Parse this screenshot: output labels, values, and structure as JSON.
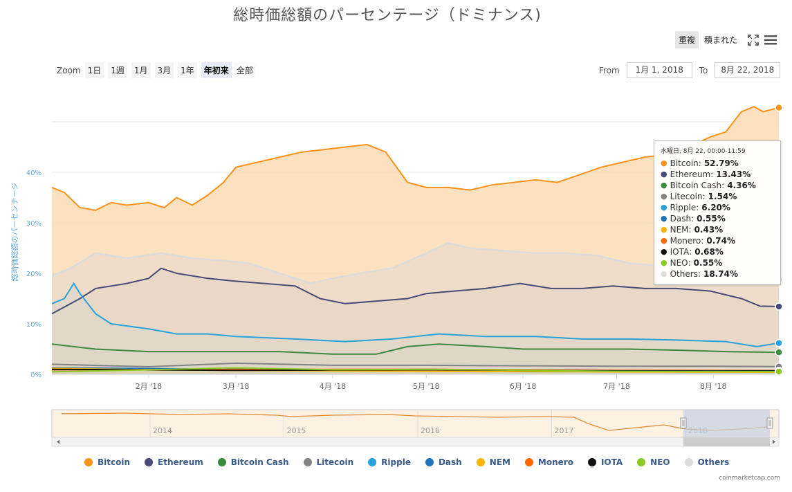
{
  "title": "総時価総額のパーセンテージ（ドミナンス)",
  "view_buttons": {
    "overlay": "重複",
    "stacked": "積まれた"
  },
  "zoom": {
    "label": "Zoom",
    "buttons": [
      "1日",
      "1週",
      "1月",
      "3月",
      "1年",
      "年初来",
      "全部"
    ],
    "active": "年初来"
  },
  "range": {
    "from_label": "From",
    "from": "1月 1, 2018",
    "to_label": "To",
    "to": "8月 22, 2018"
  },
  "tooltip": {
    "date": "水曜日, 8月 22, 00:00-11:59",
    "rows": [
      {
        "name": "Bitcoin",
        "value": "52.79%"
      },
      {
        "name": "Ethereum",
        "value": "13.43%"
      },
      {
        "name": "Bitcoin Cash",
        "value": "4.36%"
      },
      {
        "name": "Litecoin",
        "value": "1.54%"
      },
      {
        "name": "Ripple",
        "value": "6.20%"
      },
      {
        "name": "Dash",
        "value": "0.55%"
      },
      {
        "name": "NEM",
        "value": "0.43%"
      },
      {
        "name": "Monero",
        "value": "0.74%"
      },
      {
        "name": "IOTA",
        "value": "0.68%"
      },
      {
        "name": "NEO",
        "value": "0.55%"
      },
      {
        "name": "Others",
        "value": "18.74%"
      }
    ]
  },
  "credit": "coinmarketcap.com",
  "navigator": {
    "year_labels": [
      "2014",
      "2015",
      "2016",
      "2017",
      "2018"
    ]
  },
  "chart_data": {
    "type": "area",
    "ylabel": "総時価総額のパーセンテージ",
    "ylim": [
      0,
      55
    ],
    "y_ticks": [
      0,
      10,
      20,
      30,
      40
    ],
    "y_tick_labels": [
      "0%",
      "10%",
      "20%",
      "30%",
      "40%"
    ],
    "x_tick_labels": [
      "2月 '18",
      "3月 '18",
      "4月 '18",
      "5月 '18",
      "6月 '18",
      "7月 '18",
      "8月 '18"
    ],
    "x_tick_dates": [
      "2018-02-01",
      "2018-03-01",
      "2018-04-01",
      "2018-05-01",
      "2018-06-01",
      "2018-07-01",
      "2018-08-01"
    ],
    "x_range": [
      "2018-01-01",
      "2018-08-22"
    ],
    "legend_position": "bottom",
    "series": [
      {
        "name": "Bitcoin",
        "color": "#f7931a",
        "fill": "#fbd9b0",
        "points": [
          [
            "2018-01-01",
            37
          ],
          [
            "2018-01-05",
            36
          ],
          [
            "2018-01-10",
            33
          ],
          [
            "2018-01-15",
            32.5
          ],
          [
            "2018-01-20",
            34
          ],
          [
            "2018-01-25",
            33.5
          ],
          [
            "2018-02-01",
            34
          ],
          [
            "2018-02-06",
            33
          ],
          [
            "2018-02-10",
            35
          ],
          [
            "2018-02-15",
            33.5
          ],
          [
            "2018-02-20",
            35.5
          ],
          [
            "2018-02-25",
            38
          ],
          [
            "2018-03-01",
            41
          ],
          [
            "2018-03-08",
            42
          ],
          [
            "2018-03-15",
            43
          ],
          [
            "2018-03-22",
            44
          ],
          [
            "2018-03-29",
            44.5
          ],
          [
            "2018-04-05",
            45
          ],
          [
            "2018-04-12",
            45.5
          ],
          [
            "2018-04-18",
            44
          ],
          [
            "2018-04-25",
            38
          ],
          [
            "2018-05-01",
            37
          ],
          [
            "2018-05-08",
            37
          ],
          [
            "2018-05-15",
            36.5
          ],
          [
            "2018-05-22",
            37.5
          ],
          [
            "2018-05-29",
            38
          ],
          [
            "2018-06-05",
            38.5
          ],
          [
            "2018-06-12",
            38
          ],
          [
            "2018-06-19",
            39.5
          ],
          [
            "2018-06-26",
            41
          ],
          [
            "2018-07-03",
            42
          ],
          [
            "2018-07-10",
            43
          ],
          [
            "2018-07-17",
            43.5
          ],
          [
            "2018-07-24",
            45
          ],
          [
            "2018-07-31",
            47
          ],
          [
            "2018-08-05",
            48
          ],
          [
            "2018-08-10",
            52
          ],
          [
            "2018-08-14",
            53
          ],
          [
            "2018-08-17",
            52
          ],
          [
            "2018-08-22",
            52.79
          ]
        ]
      },
      {
        "name": "Ethereum",
        "color": "#454b76",
        "fill": "#d3c3b0",
        "points": [
          [
            "2018-01-01",
            12
          ],
          [
            "2018-01-10",
            15
          ],
          [
            "2018-01-15",
            17
          ],
          [
            "2018-01-25",
            18
          ],
          [
            "2018-02-01",
            19
          ],
          [
            "2018-02-05",
            21
          ],
          [
            "2018-02-10",
            20
          ],
          [
            "2018-02-20",
            19
          ],
          [
            "2018-02-28",
            18.5
          ],
          [
            "2018-03-10",
            18
          ],
          [
            "2018-03-20",
            17.5
          ],
          [
            "2018-03-28",
            15
          ],
          [
            "2018-04-05",
            14
          ],
          [
            "2018-04-15",
            14.5
          ],
          [
            "2018-04-25",
            15
          ],
          [
            "2018-05-01",
            16
          ],
          [
            "2018-05-10",
            16.5
          ],
          [
            "2018-05-20",
            17
          ],
          [
            "2018-05-31",
            18
          ],
          [
            "2018-06-10",
            17
          ],
          [
            "2018-06-20",
            17
          ],
          [
            "2018-06-30",
            17.5
          ],
          [
            "2018-07-10",
            17
          ],
          [
            "2018-07-20",
            17
          ],
          [
            "2018-07-31",
            16.5
          ],
          [
            "2018-08-10",
            15
          ],
          [
            "2018-08-16",
            13.5
          ],
          [
            "2018-08-22",
            13.43
          ]
        ]
      },
      {
        "name": "Bitcoin Cash",
        "color": "#3b8a3b",
        "fill": "#8fb08a",
        "points": [
          [
            "2018-01-01",
            6
          ],
          [
            "2018-01-15",
            5
          ],
          [
            "2018-02-01",
            4.5
          ],
          [
            "2018-02-15",
            4.5
          ],
          [
            "2018-03-01",
            4.5
          ],
          [
            "2018-03-15",
            4.5
          ],
          [
            "2018-04-01",
            4
          ],
          [
            "2018-04-15",
            4
          ],
          [
            "2018-04-25",
            5.5
          ],
          [
            "2018-05-05",
            6
          ],
          [
            "2018-05-20",
            5.5
          ],
          [
            "2018-06-01",
            5
          ],
          [
            "2018-06-20",
            5
          ],
          [
            "2018-07-05",
            5
          ],
          [
            "2018-07-20",
            4.8
          ],
          [
            "2018-08-05",
            4.5
          ],
          [
            "2018-08-22",
            4.36
          ]
        ]
      },
      {
        "name": "Litecoin",
        "color": "#838383",
        "fill": "#9a9a9a",
        "points": [
          [
            "2018-01-01",
            2
          ],
          [
            "2018-02-01",
            1.5
          ],
          [
            "2018-03-01",
            2.2
          ],
          [
            "2018-04-01",
            1.8
          ],
          [
            "2018-05-01",
            1.8
          ],
          [
            "2018-06-01",
            1.7
          ],
          [
            "2018-07-01",
            1.6
          ],
          [
            "2018-08-01",
            1.6
          ],
          [
            "2018-08-22",
            1.54
          ]
        ]
      },
      {
        "name": "Ripple",
        "color": "#27a2db",
        "fill": "#a8c5c8",
        "points": [
          [
            "2018-01-01",
            14
          ],
          [
            "2018-01-05",
            15
          ],
          [
            "2018-01-08",
            18
          ],
          [
            "2018-01-10",
            16
          ],
          [
            "2018-01-15",
            12
          ],
          [
            "2018-01-20",
            10
          ],
          [
            "2018-02-01",
            9
          ],
          [
            "2018-02-10",
            8
          ],
          [
            "2018-02-20",
            8
          ],
          [
            "2018-03-01",
            7.5
          ],
          [
            "2018-03-20",
            7
          ],
          [
            "2018-04-05",
            6.5
          ],
          [
            "2018-04-20",
            7
          ],
          [
            "2018-05-05",
            8
          ],
          [
            "2018-05-20",
            7.5
          ],
          [
            "2018-06-05",
            7.5
          ],
          [
            "2018-06-20",
            7
          ],
          [
            "2018-07-05",
            7
          ],
          [
            "2018-07-20",
            6.8
          ],
          [
            "2018-08-05",
            6.5
          ],
          [
            "2018-08-15",
            5.5
          ],
          [
            "2018-08-22",
            6.2
          ]
        ]
      },
      {
        "name": "Dash",
        "color": "#1c75bc",
        "fill": "#6a8da8",
        "points": [
          [
            "2018-01-01",
            1.3
          ],
          [
            "2018-03-01",
            1
          ],
          [
            "2018-05-01",
            0.9
          ],
          [
            "2018-07-01",
            0.7
          ],
          [
            "2018-08-22",
            0.55
          ]
        ]
      },
      {
        "name": "NEM",
        "color": "#f8b500",
        "fill": "#c8ba70",
        "points": [
          [
            "2018-01-01",
            1.2
          ],
          [
            "2018-02-01",
            0.9
          ],
          [
            "2018-03-01",
            0.8
          ],
          [
            "2018-05-01",
            0.6
          ],
          [
            "2018-07-01",
            0.5
          ],
          [
            "2018-08-22",
            0.43
          ]
        ]
      },
      {
        "name": "Monero",
        "color": "#ff6600",
        "fill": "#c09060",
        "points": [
          [
            "2018-01-01",
            0.9
          ],
          [
            "2018-03-01",
            1
          ],
          [
            "2018-05-01",
            1
          ],
          [
            "2018-07-01",
            0.8
          ],
          [
            "2018-08-22",
            0.74
          ]
        ]
      },
      {
        "name": "IOTA",
        "color": "#111111",
        "fill": "#606060",
        "points": [
          [
            "2018-01-01",
            1
          ],
          [
            "2018-03-01",
            0.8
          ],
          [
            "2018-05-01",
            0.9
          ],
          [
            "2018-07-01",
            0.7
          ],
          [
            "2018-08-22",
            0.68
          ]
        ]
      },
      {
        "name": "NEO",
        "color": "#8ac926",
        "fill": "#a6b860",
        "points": [
          [
            "2018-01-01",
            0.5
          ],
          [
            "2018-02-01",
            0.9
          ],
          [
            "2018-03-01",
            1.3
          ],
          [
            "2018-04-01",
            0.9
          ],
          [
            "2018-05-01",
            1
          ],
          [
            "2018-07-01",
            0.6
          ],
          [
            "2018-08-22",
            0.55
          ]
        ]
      },
      {
        "name": "Others",
        "color": "#dcdcdc",
        "fill": "#ecdccb",
        "points": [
          [
            "2018-01-01",
            19.5
          ],
          [
            "2018-01-07",
            21
          ],
          [
            "2018-01-15",
            24
          ],
          [
            "2018-01-25",
            23
          ],
          [
            "2018-02-05",
            24
          ],
          [
            "2018-02-15",
            23
          ],
          [
            "2018-02-25",
            22.5
          ],
          [
            "2018-03-05",
            22
          ],
          [
            "2018-03-15",
            20
          ],
          [
            "2018-03-25",
            18
          ],
          [
            "2018-04-01",
            19
          ],
          [
            "2018-04-10",
            20
          ],
          [
            "2018-04-20",
            21
          ],
          [
            "2018-05-01",
            24
          ],
          [
            "2018-05-08",
            26
          ],
          [
            "2018-05-15",
            25
          ],
          [
            "2018-05-25",
            24.5
          ],
          [
            "2018-06-05",
            24
          ],
          [
            "2018-06-15",
            24
          ],
          [
            "2018-06-25",
            23.5
          ],
          [
            "2018-07-05",
            22
          ],
          [
            "2018-07-15",
            21.5
          ],
          [
            "2018-07-25",
            21
          ],
          [
            "2018-08-05",
            20
          ],
          [
            "2018-08-15",
            19
          ],
          [
            "2018-08-22",
            18.74
          ]
        ]
      }
    ]
  }
}
